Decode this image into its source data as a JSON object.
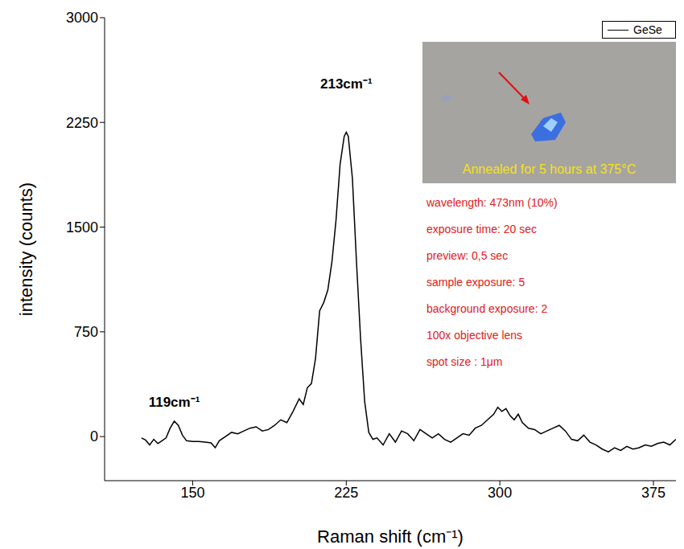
{
  "chart_data": {
    "type": "line",
    "x_label": "Raman shift (cm⁻¹)",
    "y_label": "intensity (counts)",
    "xlim": [
      107,
      386
    ],
    "xticks": [
      150,
      225,
      300,
      375
    ],
    "ylim": [
      -316,
      3000
    ],
    "yticks": [
      0,
      750,
      1500,
      2250,
      3000
    ],
    "legend": "upper right",
    "grid": false,
    "x": [
      125,
      127,
      129,
      131,
      133,
      135,
      137,
      139,
      141,
      143,
      145,
      147,
      150,
      153,
      156,
      159,
      161,
      163,
      166,
      169,
      172,
      175,
      178,
      181,
      184,
      187,
      190,
      193,
      196,
      199,
      202,
      204,
      206,
      208,
      210,
      212,
      214,
      216,
      218,
      220,
      222,
      224,
      225,
      226,
      228,
      230,
      232,
      234,
      236,
      238,
      240,
      243,
      246,
      249,
      252,
      255,
      258,
      261,
      264,
      267,
      270,
      273,
      276,
      279,
      282,
      285,
      288,
      291,
      294,
      297,
      299,
      301,
      303,
      305,
      307,
      309,
      311,
      314,
      317,
      320,
      323,
      326,
      329,
      332,
      335,
      338,
      341,
      344,
      347,
      350,
      353,
      356,
      359,
      362,
      365,
      368,
      371,
      374,
      377,
      380,
      383,
      386
    ],
    "series": [
      {
        "name": "GeSe",
        "color": "#000000",
        "values": [
          -10,
          -25,
          -60,
          -20,
          -50,
          -30,
          -10,
          60,
          110,
          80,
          10,
          -30,
          -35,
          -35,
          -40,
          -45,
          -80,
          -30,
          0,
          30,
          20,
          40,
          60,
          70,
          40,
          50,
          80,
          120,
          100,
          180,
          270,
          230,
          350,
          380,
          560,
          900,
          960,
          1050,
          1250,
          1550,
          1950,
          2150,
          2180,
          2150,
          1850,
          1250,
          700,
          250,
          30,
          -20,
          -10,
          -60,
          20,
          -40,
          40,
          20,
          -30,
          50,
          20,
          -10,
          20,
          -20,
          -40,
          -10,
          20,
          10,
          60,
          80,
          120,
          160,
          210,
          180,
          200,
          150,
          120,
          160,
          100,
          60,
          50,
          20,
          40,
          60,
          80,
          40,
          -20,
          -30,
          10,
          -40,
          -60,
          -90,
          -110,
          -80,
          -100,
          -70,
          -90,
          -80,
          -60,
          -70,
          -50,
          -40,
          -60,
          -20
        ]
      }
    ],
    "annotations": [
      {
        "text": "119cm⁻¹",
        "x": 141,
        "y": 250
      },
      {
        "text": "213cm⁻¹",
        "x": 225,
        "y": 2530
      }
    ],
    "inset_caption": "Annealed for 5 hours at 375°C",
    "notes": [
      "wavelength: 473nm (10%)",
      "exposure time: 20 sec",
      "preview: 0,5 sec",
      "sample exposure: 5",
      "background exposure: 2",
      "100x objective lens",
      "spot size : 1μm"
    ]
  }
}
